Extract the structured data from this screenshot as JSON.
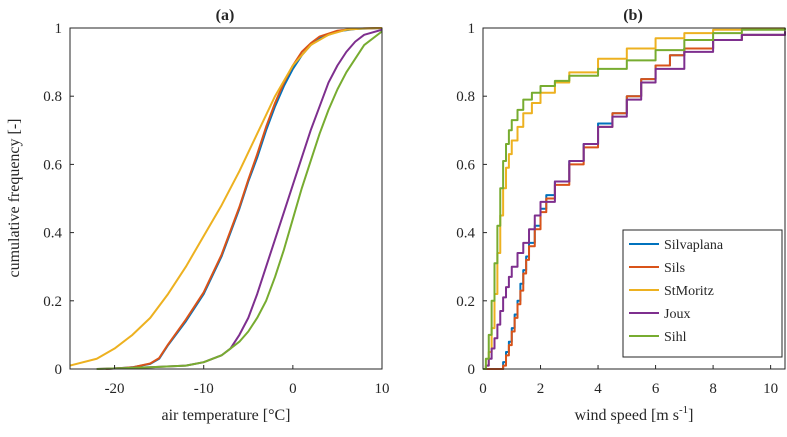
{
  "chart_data": [
    {
      "type": "line",
      "panel": "a",
      "title": "(a)",
      "xlabel": "air temperature [°C]",
      "ylabel": "cumulative frequency [-]",
      "xlim": [
        -25,
        10
      ],
      "ylim": [
        0,
        1
      ],
      "xticks": [
        -20,
        -10,
        0,
        10
      ],
      "yticks": [
        0,
        0.2,
        0.4,
        0.6,
        0.8,
        1
      ],
      "xtick_labels": [
        "-20",
        "-10",
        "0",
        "10"
      ],
      "ytick_labels": [
        "0",
        "0.2",
        "0.4",
        "0.6",
        "0.8",
        "1"
      ],
      "grid": false,
      "series": [
        {
          "name": "Silvaplana",
          "color": "#0072BD",
          "x": [
            -21,
            -18,
            -16,
            -15,
            -14,
            -12,
            -10,
            -8,
            -7,
            -6,
            -5,
            -4,
            -3,
            -2,
            -1,
            0,
            1,
            2,
            3,
            5,
            7,
            10
          ],
          "y": [
            0,
            0.005,
            0.015,
            0.03,
            0.07,
            0.14,
            0.22,
            0.33,
            0.4,
            0.47,
            0.55,
            0.62,
            0.7,
            0.77,
            0.83,
            0.88,
            0.92,
            0.95,
            0.97,
            0.99,
            0.997,
            1
          ]
        },
        {
          "name": "Sils",
          "color": "#D95319",
          "x": [
            -21,
            -18,
            -16,
            -15,
            -14,
            -12,
            -10,
            -8,
            -7,
            -6,
            -5,
            -4,
            -3,
            -2,
            -1,
            0,
            1,
            2,
            3,
            5,
            7,
            10
          ],
          "y": [
            0,
            0.005,
            0.016,
            0.032,
            0.072,
            0.145,
            0.225,
            0.335,
            0.405,
            0.475,
            0.555,
            0.63,
            0.71,
            0.78,
            0.84,
            0.89,
            0.93,
            0.955,
            0.975,
            0.992,
            0.998,
            1
          ]
        },
        {
          "name": "StMoritz",
          "color": "#EDB120",
          "x": [
            -25,
            -22,
            -20,
            -18,
            -16,
            -14,
            -12,
            -10,
            -8,
            -6,
            -4,
            -2,
            0,
            2,
            4,
            6,
            8,
            10
          ],
          "y": [
            0.01,
            0.03,
            0.06,
            0.1,
            0.15,
            0.22,
            0.3,
            0.39,
            0.48,
            0.58,
            0.69,
            0.8,
            0.89,
            0.95,
            0.98,
            0.995,
            0.999,
            1
          ]
        },
        {
          "name": "Joux",
          "color": "#7E2F8E",
          "x": [
            -22,
            -16,
            -12,
            -10,
            -8,
            -7,
            -6,
            -5,
            -4,
            -3,
            -2,
            -1,
            0,
            1,
            2,
            3,
            4,
            5,
            6,
            7,
            8,
            10
          ],
          "y": [
            0,
            0.005,
            0.01,
            0.02,
            0.04,
            0.06,
            0.1,
            0.15,
            0.22,
            0.3,
            0.38,
            0.46,
            0.54,
            0.62,
            0.7,
            0.77,
            0.84,
            0.89,
            0.93,
            0.96,
            0.98,
            0.995
          ]
        },
        {
          "name": "Sihl",
          "color": "#77AC30",
          "x": [
            -22,
            -16,
            -12,
            -10,
            -8,
            -7,
            -6,
            -5,
            -4,
            -3,
            -2,
            -1,
            0,
            1,
            2,
            3,
            4,
            5,
            6,
            7,
            8,
            10
          ],
          "y": [
            0,
            0.005,
            0.01,
            0.02,
            0.04,
            0.06,
            0.08,
            0.11,
            0.15,
            0.2,
            0.27,
            0.35,
            0.44,
            0.53,
            0.61,
            0.69,
            0.76,
            0.82,
            0.87,
            0.91,
            0.95,
            0.99
          ]
        }
      ]
    },
    {
      "type": "line",
      "panel": "b",
      "title": "(b)",
      "xlabel": "wind speed [m s",
      "xlabel_superscript": "-1",
      "xlabel_suffix": "]",
      "xlim": [
        0,
        10.5
      ],
      "ylim": [
        0,
        1
      ],
      "xticks": [
        0,
        2,
        4,
        6,
        8,
        10
      ],
      "yticks": [
        0,
        0.2,
        0.4,
        0.6,
        0.8,
        1
      ],
      "xtick_labels": [
        "0",
        "2",
        "4",
        "6",
        "8",
        "10"
      ],
      "ytick_labels": [
        "0",
        "0.2",
        "0.4",
        "0.6",
        "0.8",
        "1"
      ],
      "grid": false,
      "legend_position": "bottom-right",
      "series": [
        {
          "name": "Silvaplana",
          "color": "#0072BD",
          "step": true,
          "x": [
            0,
            0.7,
            0.8,
            0.9,
            1.0,
            1.1,
            1.2,
            1.3,
            1.4,
            1.5,
            1.6,
            1.8,
            2.0,
            2.2,
            2.5,
            3.0,
            3.5,
            4.0,
            4.5,
            5.0,
            5.5,
            6.0,
            6.5,
            7.0,
            8.0,
            9.0,
            10.5
          ],
          "y": [
            0,
            0.02,
            0.05,
            0.08,
            0.12,
            0.16,
            0.2,
            0.25,
            0.29,
            0.33,
            0.37,
            0.42,
            0.47,
            0.51,
            0.55,
            0.61,
            0.66,
            0.72,
            0.75,
            0.8,
            0.85,
            0.89,
            0.92,
            0.94,
            0.965,
            0.98,
            0.99
          ]
        },
        {
          "name": "Sils",
          "color": "#D95319",
          "step": true,
          "x": [
            0,
            0.7,
            0.8,
            0.9,
            1.0,
            1.1,
            1.2,
            1.3,
            1.4,
            1.5,
            1.6,
            1.8,
            2.0,
            2.2,
            2.5,
            3.0,
            3.5,
            4.0,
            4.5,
            5.0,
            5.5,
            6.0,
            6.5,
            7.0,
            8.0,
            9.0,
            10.5
          ],
          "y": [
            0,
            0.01,
            0.04,
            0.07,
            0.11,
            0.15,
            0.19,
            0.23,
            0.28,
            0.32,
            0.36,
            0.41,
            0.46,
            0.5,
            0.54,
            0.6,
            0.65,
            0.71,
            0.75,
            0.8,
            0.85,
            0.89,
            0.92,
            0.94,
            0.965,
            0.98,
            0.99
          ]
        },
        {
          "name": "StMoritz",
          "color": "#EDB120",
          "step": true,
          "x": [
            0,
            0.1,
            0.2,
            0.3,
            0.4,
            0.5,
            0.6,
            0.7,
            0.8,
            0.9,
            1.0,
            1.2,
            1.4,
            1.7,
            2.0,
            2.5,
            3.0,
            4.0,
            5.0,
            6.0,
            7.0,
            8.0,
            9.0,
            10.5
          ],
          "y": [
            0,
            0.01,
            0.05,
            0.12,
            0.22,
            0.34,
            0.45,
            0.53,
            0.59,
            0.63,
            0.67,
            0.71,
            0.75,
            0.78,
            0.81,
            0.84,
            0.87,
            0.91,
            0.94,
            0.97,
            0.985,
            0.995,
            0.999,
            1
          ]
        },
        {
          "name": "Joux",
          "color": "#7E2F8E",
          "step": true,
          "x": [
            0,
            0.1,
            0.2,
            0.3,
            0.4,
            0.5,
            0.6,
            0.7,
            0.8,
            0.9,
            1.0,
            1.2,
            1.4,
            1.6,
            1.8,
            2.0,
            2.5,
            3.0,
            3.5,
            4.0,
            4.5,
            5.0,
            5.5,
            6.0,
            7.0,
            8.0,
            9.0,
            10.5
          ],
          "y": [
            0,
            0.01,
            0.03,
            0.06,
            0.09,
            0.13,
            0.17,
            0.21,
            0.24,
            0.27,
            0.3,
            0.34,
            0.37,
            0.41,
            0.45,
            0.49,
            0.55,
            0.61,
            0.66,
            0.71,
            0.74,
            0.79,
            0.84,
            0.88,
            0.93,
            0.965,
            0.98,
            0.99
          ]
        },
        {
          "name": "Sihl",
          "color": "#77AC30",
          "step": true,
          "x": [
            0,
            0.1,
            0.2,
            0.3,
            0.4,
            0.5,
            0.6,
            0.7,
            0.8,
            0.9,
            1.0,
            1.2,
            1.4,
            1.7,
            2.0,
            2.5,
            3.0,
            4.0,
            5.0,
            6.0,
            7.0,
            8.0,
            9.0,
            10.5
          ],
          "y": [
            0,
            0.03,
            0.1,
            0.2,
            0.31,
            0.42,
            0.53,
            0.61,
            0.66,
            0.7,
            0.73,
            0.76,
            0.79,
            0.81,
            0.83,
            0.845,
            0.86,
            0.88,
            0.905,
            0.935,
            0.965,
            0.985,
            0.995,
            1
          ]
        }
      ]
    }
  ]
}
